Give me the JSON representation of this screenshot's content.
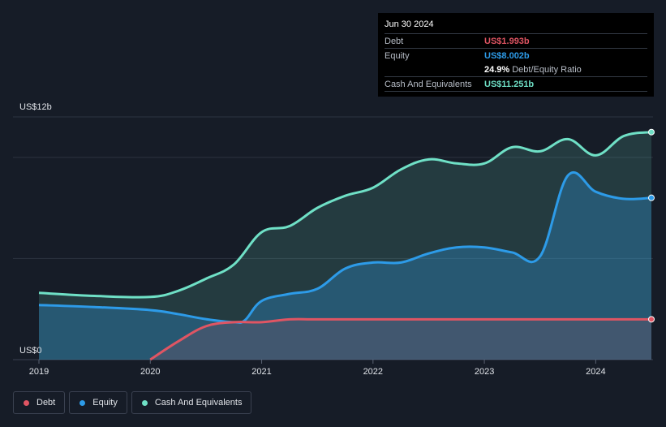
{
  "chart_data": {
    "type": "area",
    "title": "",
    "xlabel": "",
    "ylabel": "",
    "ylim": [
      0,
      12
    ],
    "xlim": [
      2019.0,
      2024.5
    ],
    "y_axis_labels": {
      "top": "US$12b",
      "bottom": "US$0"
    },
    "x_ticks": [
      2019,
      2020,
      2021,
      2022,
      2023,
      2024
    ],
    "x_tick_labels": [
      "2019",
      "2020",
      "2021",
      "2022",
      "2023",
      "2024"
    ],
    "gridlines": [
      0,
      5,
      10,
      12
    ],
    "series": [
      {
        "name": "Cash And Equivalents",
        "color": "#6fe0c6",
        "x": [
          2019.0,
          2019.5,
          2020.0,
          2020.25,
          2020.5,
          2020.75,
          2021.0,
          2021.25,
          2021.5,
          2021.75,
          2022.0,
          2022.25,
          2022.5,
          2022.75,
          2023.0,
          2023.25,
          2023.5,
          2023.75,
          2024.0,
          2024.25,
          2024.5
        ],
        "values": [
          3.3,
          3.15,
          3.1,
          3.4,
          4.0,
          4.7,
          6.3,
          6.6,
          7.5,
          8.1,
          8.5,
          9.4,
          9.9,
          9.7,
          9.7,
          10.5,
          10.3,
          10.9,
          10.1,
          11.05,
          11.25
        ]
      },
      {
        "name": "Equity",
        "color": "#2d9be8",
        "x": [
          2019.0,
          2019.5,
          2020.0,
          2020.25,
          2020.5,
          2020.75,
          2020.85,
          2021.0,
          2021.25,
          2021.5,
          2021.75,
          2022.0,
          2022.25,
          2022.5,
          2022.75,
          2023.0,
          2023.25,
          2023.5,
          2023.75,
          2024.0,
          2024.25,
          2024.5
        ],
        "values": [
          2.7,
          2.6,
          2.45,
          2.25,
          2.0,
          1.85,
          1.95,
          2.9,
          3.25,
          3.5,
          4.5,
          4.8,
          4.8,
          5.25,
          5.55,
          5.55,
          5.3,
          5.1,
          9.1,
          8.3,
          7.95,
          8.0
        ]
      },
      {
        "name": "Debt",
        "color": "#e05563",
        "x": [
          2020.0,
          2020.25,
          2020.5,
          2020.75,
          2021.0,
          2021.25,
          2021.5,
          2022.0,
          2022.5,
          2023.0,
          2023.5,
          2024.0,
          2024.5
        ],
        "values": [
          0.0,
          0.9,
          1.65,
          1.85,
          1.85,
          1.99,
          1.99,
          1.99,
          1.99,
          1.99,
          1.99,
          1.99,
          1.993
        ]
      }
    ],
    "legend": [
      "Debt",
      "Equity",
      "Cash And Equivalents"
    ]
  },
  "tooltip": {
    "date": "Jun 30 2024",
    "rows": [
      {
        "label": "Debt",
        "value": "US$1.993b",
        "color": "#e05563"
      },
      {
        "label": "Equity",
        "value": "US$8.002b",
        "color": "#2d9be8"
      },
      {
        "label": "",
        "value": "24.9%",
        "suffix": "Debt/Equity Ratio",
        "color": "#ffffff"
      },
      {
        "label": "Cash And Equivalents",
        "value": "US$11.251b",
        "color": "#6fe0c6"
      }
    ]
  },
  "legend": {
    "items": [
      {
        "label": "Debt",
        "color": "#e05563"
      },
      {
        "label": "Equity",
        "color": "#2d9be8"
      },
      {
        "label": "Cash And Equivalents",
        "color": "#6fe0c6"
      }
    ]
  }
}
